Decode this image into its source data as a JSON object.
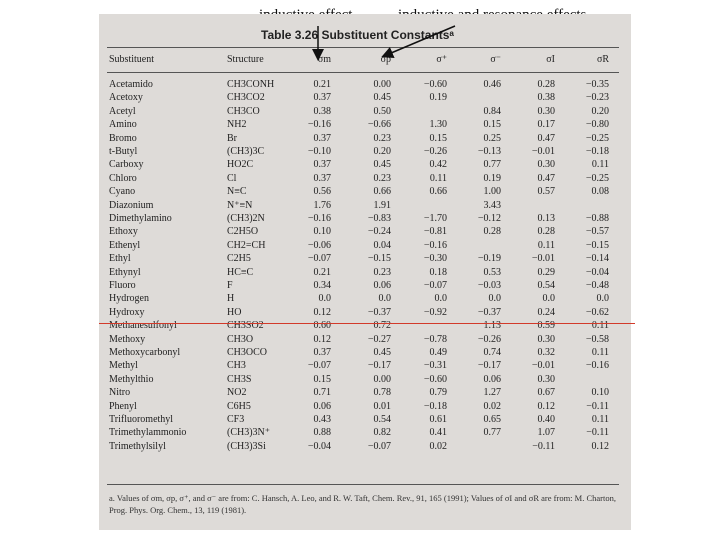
{
  "annotations": {
    "caption_left": "inductive effect",
    "caption_right": "inductive and resonance effects",
    "line_color": "#d23a2a"
  },
  "table": {
    "title": "Table 3.26  Substituent Constantsᵃ",
    "headers": [
      "Substituent",
      "Structure",
      "σm",
      "σp",
      "σ⁺",
      "σ⁻",
      "σI",
      "σR"
    ],
    "rows": [
      [
        "Acetamido",
        "CH3CONH",
        "0.21",
        "0.00",
        "−0.60",
        "0.46",
        "0.28",
        "−0.35"
      ],
      [
        "Acetoxy",
        "CH3CO2",
        "0.37",
        "0.45",
        "0.19",
        "",
        "0.38",
        "−0.23"
      ],
      [
        "Acetyl",
        "CH3CO",
        "0.38",
        "0.50",
        "",
        "0.84",
        "0.30",
        "0.20"
      ],
      [
        "Amino",
        "NH2",
        "−0.16",
        "−0.66",
        "1.30",
        "0.15",
        "0.17",
        "−0.80"
      ],
      [
        "Bromo",
        "Br",
        "0.37",
        "0.23",
        "0.15",
        "0.25",
        "0.47",
        "−0.25"
      ],
      [
        "t-Butyl",
        "(CH3)3C",
        "−0.10",
        "0.20",
        "−0.26",
        "−0.13",
        "−0.01",
        "−0.18"
      ],
      [
        "Carboxy",
        "HO2C",
        "0.37",
        "0.45",
        "0.42",
        "0.77",
        "0.30",
        "0.11"
      ],
      [
        "Chloro",
        "Cl",
        "0.37",
        "0.23",
        "0.11",
        "0.19",
        "0.47",
        "−0.25"
      ],
      [
        "Cyano",
        "N≡C",
        "0.56",
        "0.66",
        "0.66",
        "1.00",
        "0.57",
        "0.08"
      ],
      [
        "Diazonium",
        "N⁺≡N",
        "1.76",
        "1.91",
        "",
        "3.43",
        "",
        ""
      ],
      [
        "Dimethylamino",
        "(CH3)2N",
        "−0.16",
        "−0.83",
        "−1.70",
        "−0.12",
        "0.13",
        "−0.88"
      ],
      [
        "Ethoxy",
        "C2H5O",
        "0.10",
        "−0.24",
        "−0.81",
        "0.28",
        "0.28",
        "−0.57"
      ],
      [
        "Ethenyl",
        "CH2=CH",
        "−0.06",
        "0.04",
        "−0.16",
        "",
        "0.11",
        "−0.15"
      ],
      [
        "Ethyl",
        "C2H5",
        "−0.07",
        "−0.15",
        "−0.30",
        "−0.19",
        "−0.01",
        "−0.14"
      ],
      [
        "Ethynyl",
        "HC≡C",
        "0.21",
        "0.23",
        "0.18",
        "0.53",
        "0.29",
        "−0.04"
      ],
      [
        "Fluoro",
        "F",
        "0.34",
        "0.06",
        "−0.07",
        "−0.03",
        "0.54",
        "−0.48"
      ],
      [
        "Hydrogen",
        "H",
        "0.0",
        "0.0",
        "0.0",
        "0.0",
        "0.0",
        "0.0"
      ],
      [
        "Hydroxy",
        "HO",
        "0.12",
        "−0.37",
        "−0.92",
        "−0.37",
        "0.24",
        "−0.62"
      ],
      [
        "Methanesulfonyl",
        "CH3SO2",
        "0.60",
        "0.72",
        "",
        "1.13",
        "0.59",
        "0.11"
      ],
      [
        "Methoxy",
        "CH3O",
        "0.12",
        "−0.27",
        "−0.78",
        "−0.26",
        "0.30",
        "−0.58"
      ],
      [
        "Methoxycarbonyl",
        "CH3OCO",
        "0.37",
        "0.45",
        "0.49",
        "0.74",
        "0.32",
        "0.11"
      ],
      [
        "Methyl",
        "CH3",
        "−0.07",
        "−0.17",
        "−0.31",
        "−0.17",
        "−0.01",
        "−0.16"
      ],
      [
        "Methylthio",
        "CH3S",
        "0.15",
        "0.00",
        "−0.60",
        "0.06",
        "0.30",
        ""
      ],
      [
        "Nitro",
        "NO2",
        "0.71",
        "0.78",
        "0.79",
        "1.27",
        "0.67",
        "0.10"
      ],
      [
        "Phenyl",
        "C6H5",
        "0.06",
        "0.01",
        "−0.18",
        "0.02",
        "0.12",
        "−0.11"
      ],
      [
        "Trifluoromethyl",
        "CF3",
        "0.43",
        "0.54",
        "0.61",
        "0.65",
        "0.40",
        "0.11"
      ],
      [
        "Trimethylammonio",
        "(CH3)3N⁺",
        "0.88",
        "0.82",
        "0.41",
        "0.77",
        "1.07",
        "−0.11"
      ],
      [
        "Trimethylsilyl",
        "(CH3)3Si",
        "−0.04",
        "−0.07",
        "0.02",
        "",
        "−0.11",
        "0.12"
      ]
    ],
    "footnote": "a. Values of σm, σp, σ⁺, and σ⁻ are from: C. Hansch, A. Leo, and R. W. Taft, Chem. Rev., 91, 165 (1991); Values of σI and σR are from: M. Charton, Prog. Phys. Org. Chem., 13, 119 (1981)."
  }
}
